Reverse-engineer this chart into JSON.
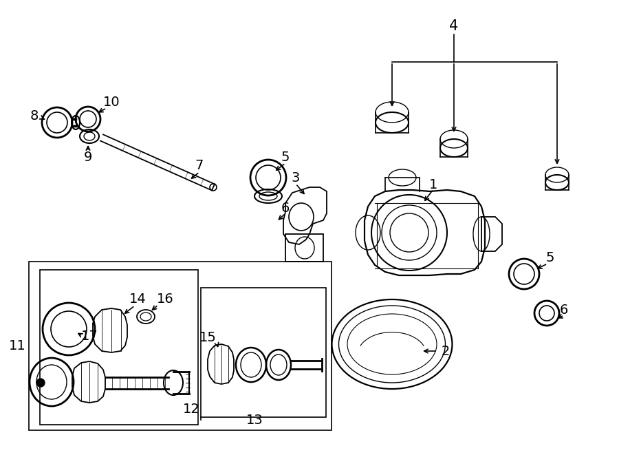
{
  "bg_color": "#ffffff",
  "line_color": "#000000",
  "fig_width": 9.0,
  "fig_height": 6.61,
  "dpi": 100,
  "fs": 14
}
